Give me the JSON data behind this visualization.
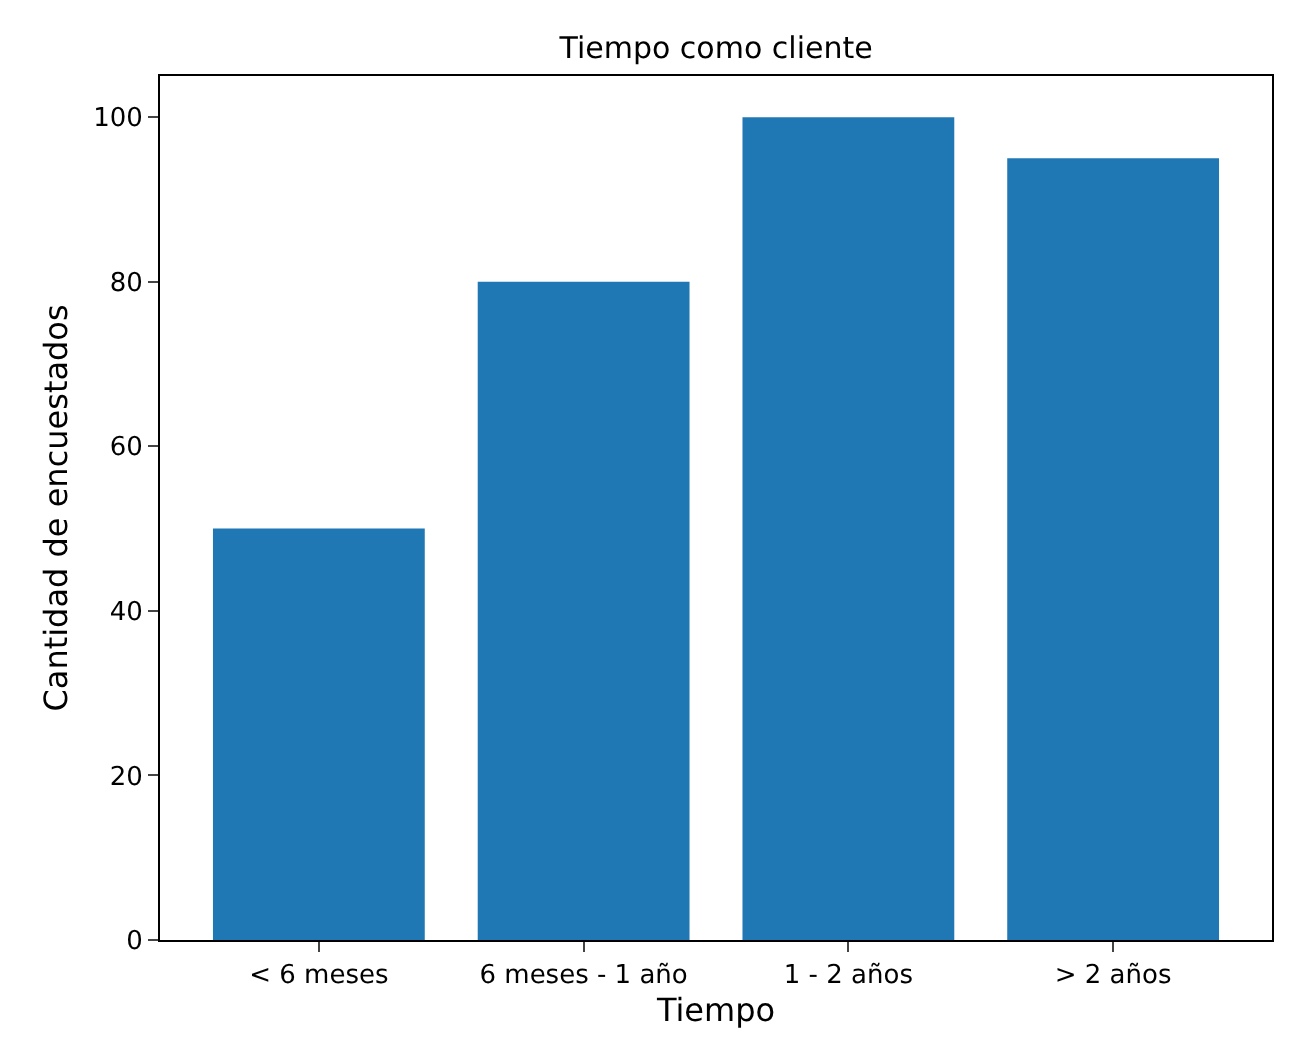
{
  "chart_data": {
    "type": "bar",
    "title": "Tiempo como cliente",
    "xlabel": "Tiempo",
    "ylabel": "Cantidad de encuestados",
    "categories": [
      "< 6 meses",
      "6 meses - 1 año",
      "1 - 2 años",
      "> 2 años"
    ],
    "values": [
      50,
      80,
      100,
      95
    ],
    "color": "#1f77b4",
    "ylim": [
      0,
      105
    ],
    "yticks": [
      0,
      20,
      40,
      60,
      80,
      100
    ]
  }
}
